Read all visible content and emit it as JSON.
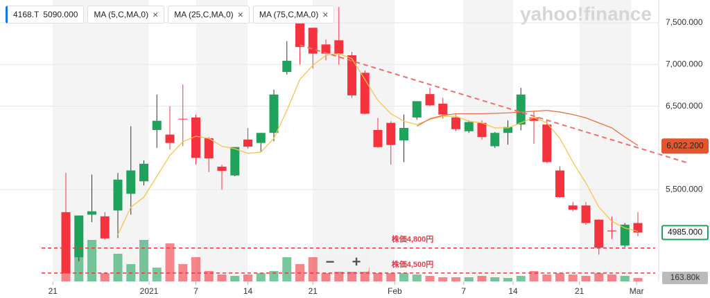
{
  "chart_data": {
    "type": "candlestick",
    "watermark": "yahoo!finance",
    "quote_chip": {
      "symbol": "4168.T",
      "price": {
        "value": 5090,
        "label": "5090.000"
      }
    },
    "ylim": [
      4400,
      7773
    ],
    "yticks": [
      {
        "value": 5500,
        "label": "5,500.000"
      },
      {
        "value": 6500,
        "label": "6,500.000"
      },
      {
        "value": 7000,
        "label": "7,000.000"
      },
      {
        "value": 7500,
        "label": "7,500.000"
      }
    ],
    "xticks": [
      {
        "value": -1,
        "label": "21"
      },
      {
        "value": 6.4,
        "label": "2021"
      },
      {
        "value": 10,
        "label": "7"
      },
      {
        "value": 14,
        "label": "14"
      },
      {
        "value": 19,
        "label": "21"
      },
      {
        "value": 25.3,
        "label": "Feb"
      },
      {
        "value": 30.6,
        "label": "7"
      },
      {
        "value": 34.4,
        "label": "14"
      },
      {
        "value": 39.5,
        "label": "21"
      },
      {
        "value": 43.9,
        "label": "Mar"
      }
    ],
    "up_color": "#1fa35c",
    "down_color": "#f5333f",
    "open": [
      5230,
      4690,
      5200,
      5180,
      5250,
      5450,
      5600,
      6215,
      6160,
      6350,
      6365,
      6115,
      5775,
      5670,
      6100,
      6060,
      6180,
      6910,
      7500,
      7440,
      7240,
      7290,
      7110,
      6900,
      6215,
      6300,
      6090,
      6365,
      6645,
      6530,
      6365,
      6200,
      6300,
      6020,
      6180,
      6280,
      6365,
      6280,
      5730,
      5310,
      5310,
      5140,
      5010,
      4830,
      5100
    ],
    "high": [
      5700,
      5190,
      5680,
      5230,
      5700,
      6260,
      5850,
      6640,
      6500,
      6760,
      6400,
      6130,
      5800,
      6010,
      6240,
      6180,
      6700,
      7280,
      7500,
      7440,
      7300,
      7690,
      7150,
      6930,
      6360,
      6320,
      6400,
      6560,
      6720,
      6600,
      6400,
      6330,
      6330,
      6190,
      6330,
      6720,
      6440,
      6340,
      5780,
      5350,
      5350,
      5140,
      5180,
      5100,
      5230
    ],
    "low": [
      4490,
      4640,
      5110,
      4900,
      4920,
      5200,
      5550,
      6000,
      5980,
      6020,
      5800,
      5710,
      5500,
      5660,
      5990,
      5950,
      6080,
      6880,
      7000,
      6950,
      7050,
      7000,
      6600,
      6400,
      6000,
      5800,
      5830,
      6340,
      6500,
      6350,
      6200,
      6180,
      6100,
      6000,
      6040,
      6210,
      6050,
      5820,
      5400,
      5240,
      5080,
      4720,
      4910,
      4810,
      4940
    ],
    "close": [
      4500,
      5190,
      5240,
      4915,
      5620,
      5730,
      5810,
      6325,
      6060,
      6345,
      5880,
      5875,
      5725,
      6010,
      6015,
      6180,
      6640,
      7045,
      7210,
      7130,
      7130,
      7130,
      6630,
      6410,
      6010,
      6035,
      6240,
      6560,
      6510,
      6400,
      6225,
      6310,
      6130,
      6180,
      6250,
      6640,
      6325,
      5830,
      5410,
      5260,
      5100,
      4805,
      5000,
      5080,
      4985
    ],
    "volume": [
      2970000,
      1815000,
      1980000,
      396000,
      1320000,
      825000,
      1980000,
      660000,
      1815000,
      825000,
      1155000,
      495000,
      330000,
      264000,
      330000,
      396000,
      495000,
      1155000,
      825000,
      1155000,
      396000,
      495000,
      825000,
      660000,
      396000,
      396000,
      396000,
      330000,
      264000,
      198000,
      198000,
      198000,
      264000,
      198000,
      165000,
      264000,
      495000,
      330000,
      396000,
      330000,
      264000,
      396000,
      330000,
      264000,
      163800
    ],
    "vlim": [
      0,
      3300000
    ],
    "volume_tag": {
      "value": 163800,
      "label": "163.80k"
    },
    "series": [
      {
        "name": "MA (5,C,MA,0)",
        "color": "#f6c54a",
        "values": [
          null,
          null,
          null,
          null,
          4960,
          5290,
          5410,
          5660,
          5910,
          6075,
          6140,
          6115,
          6020,
          5990,
          5935,
          5950,
          6115,
          6450,
          6820,
          6990,
          7110,
          7130,
          7070,
          6820,
          6570,
          6410,
          6320,
          6280,
          6340,
          6380,
          6380,
          6320,
          6300,
          6240,
          6240,
          6300,
          6365,
          6300,
          6115,
          5830,
          5580,
          5290,
          5120,
          5040,
          5000
        ]
      },
      {
        "name": "MA (25,C,MA,0)",
        "color": "#e8704a",
        "values": [
          null,
          null,
          null,
          null,
          null,
          null,
          null,
          null,
          null,
          null,
          null,
          null,
          null,
          null,
          null,
          null,
          null,
          null,
          null,
          null,
          null,
          null,
          null,
          null,
          null,
          null,
          null,
          6260,
          6350,
          6390,
          6410,
          6410,
          6410,
          6415,
          6420,
          6430,
          6440,
          6450,
          6430,
          6400,
          6360,
          6300,
          6240,
          6130,
          6030
        ]
      },
      {
        "name": "MA (75,C,MA,0)",
        "color": "#c0392b",
        "values": [
          null,
          null,
          null,
          null,
          null,
          null,
          null,
          null,
          null,
          null,
          null,
          null,
          null,
          null,
          null,
          null,
          null,
          null,
          null,
          null,
          null,
          null,
          null,
          null,
          null,
          null,
          null,
          null,
          null,
          null,
          null,
          null,
          null,
          null,
          null,
          null,
          null,
          null,
          null,
          null,
          null,
          null,
          null,
          null,
          null
        ]
      }
    ],
    "price_tags": [
      {
        "value": 6022.2,
        "label": "6,022.200",
        "color": "#e4572e"
      },
      {
        "value": 4985,
        "label": "4985.000",
        "color": "#1fa35c"
      }
    ],
    "hlines": [
      {
        "value": 4800,
        "label": "株価4,800円"
      },
      {
        "value": 4500,
        "label": "株価4,500円"
      }
    ],
    "zoom": [
      "−",
      "+"
    ]
  }
}
